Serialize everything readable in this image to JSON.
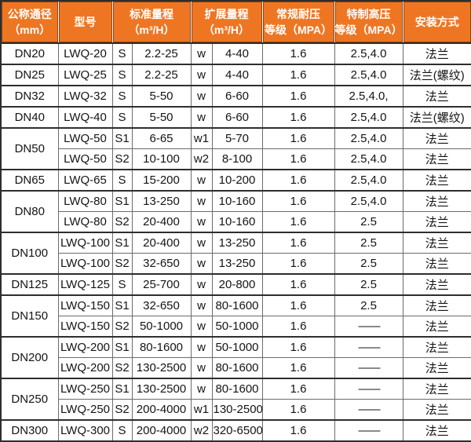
{
  "table": {
    "header": {
      "col_diameter": {
        "line1": "公称通径",
        "line2": "（mm）"
      },
      "col_model": {
        "line1": "型号"
      },
      "col_standard": {
        "line1": "标准量程",
        "line2": "（m³/H）"
      },
      "col_extended": {
        "line1": "扩展量程",
        "line2": "（m³/H）"
      },
      "col_normal_pressure": {
        "line1": "常规耐压",
        "line2": "等级（MPA）"
      },
      "col_high_pressure": {
        "line1": "特制高压",
        "line2": "等级（MPA）"
      },
      "col_install": {
        "line1": "安装方式"
      }
    },
    "rows": [
      {
        "dn": "DN20",
        "dn_span": 1,
        "model": "LWQ-20",
        "s": "S",
        "std": "2.2-25",
        "w": "w",
        "ext": "4-40",
        "normal": "1.6",
        "high": "2.5,4.0",
        "install": "法兰"
      },
      {
        "dn": "DN25",
        "dn_span": 1,
        "model": "LWQ-25",
        "s": "S",
        "std": "2.2-25",
        "w": "w",
        "ext": "4-40",
        "normal": "1.6",
        "high": "2.5,4.0",
        "install": "法兰(螺纹)"
      },
      {
        "dn": "DN32",
        "dn_span": 1,
        "model": "LWQ-32",
        "s": "S",
        "std": "5-50",
        "w": "w",
        "ext": "6-60",
        "normal": "1.6",
        "high": "2.5,4.0,",
        "install": "法兰"
      },
      {
        "dn": "DN40",
        "dn_span": 1,
        "model": "LWQ-40",
        "s": "S",
        "std": "5-50",
        "w": "w",
        "ext": "6-60",
        "normal": "1.6",
        "high": "2.5,4.0",
        "install": "法兰(螺纹)"
      },
      {
        "dn": "DN50",
        "dn_span": 2,
        "model": "LWQ-50",
        "s": "S1",
        "std": "6-65",
        "w": "w1",
        "ext": "5-70",
        "normal": "1.6",
        "high": "2.5,4.0",
        "install": "法兰"
      },
      {
        "model": "LWQ-50",
        "s": "S2",
        "std": "10-100",
        "w": "w2",
        "ext": "8-100",
        "normal": "1.6",
        "high": "2.5,4.0",
        "install": "法兰"
      },
      {
        "dn": "DN65",
        "dn_span": 1,
        "model": "LWQ-65",
        "s": "S",
        "std": "15-200",
        "w": "w",
        "ext": "10-200",
        "normal": "1.6",
        "high": "2.5,4.0",
        "install": "法兰"
      },
      {
        "dn": "DN80",
        "dn_span": 2,
        "model": "LWQ-80",
        "s": "S1",
        "std": "13-250",
        "w": "w",
        "ext": "10-160",
        "normal": "1.6",
        "high": "2.5,4.0",
        "install": "法兰"
      },
      {
        "model": "LWQ-80",
        "s": "S2",
        "std": "20-400",
        "w": "w",
        "ext": "10-160",
        "normal": "1.6",
        "high": "2.5",
        "install": "法兰"
      },
      {
        "dn": "DN100",
        "dn_span": 2,
        "model": "LWQ-100",
        "s": "S1",
        "std": "20-400",
        "w": "w",
        "ext": "13-250",
        "normal": "1.6",
        "high": "2.5",
        "install": "法兰"
      },
      {
        "model": "LWQ-100",
        "s": "S2",
        "std": "32-650",
        "w": "w",
        "ext": "13-250",
        "normal": "1.6",
        "high": "2.5",
        "install": "法兰"
      },
      {
        "dn": "DN125",
        "dn_span": 1,
        "model": "LWQ-125",
        "s": "S",
        "std": "25-700",
        "w": "w",
        "ext": "20-800",
        "normal": "1.6",
        "high": "2.5",
        "install": "法兰"
      },
      {
        "dn": "DN150",
        "dn_span": 2,
        "model": "LWQ-150",
        "s": "S1",
        "std": "32-650",
        "w": "w",
        "ext": "80-1600",
        "normal": "1.6",
        "high": "2.5",
        "install": "法兰"
      },
      {
        "model": "LWQ-150",
        "s": "S2",
        "std": "50-1000",
        "w": "w",
        "ext": "50-1000",
        "normal": "1.6",
        "high": "——",
        "install": "法兰"
      },
      {
        "dn": "DN200",
        "dn_span": 2,
        "model": "LWQ-200",
        "s": "S1",
        "std": "80-1600",
        "w": "w",
        "ext": "50-1000",
        "normal": "1.6",
        "high": "——",
        "install": "法兰"
      },
      {
        "model": "LWQ-200",
        "s": "S2",
        "std": "130-2500",
        "w": "w",
        "ext": "80-1600",
        "normal": "1.6",
        "high": "——",
        "install": "法兰"
      },
      {
        "dn": "DN250",
        "dn_span": 2,
        "model": "LWQ-250",
        "s": "S1",
        "std": "130-2500",
        "w": "w",
        "ext": "80-1600",
        "normal": "1.6",
        "high": "——",
        "install": "法兰"
      },
      {
        "model": "LWQ-250",
        "s": "S2",
        "std": "200-4000",
        "w": "w1",
        "ext": "130-2500",
        "normal": "1.6",
        "high": "——",
        "install": "法兰"
      },
      {
        "dn": "DN300",
        "dn_span": 1,
        "model": "LWQ-300",
        "s": "S",
        "std": "200-4000",
        "w": "w2",
        "ext": "320-6500",
        "normal": "1.6",
        "high": "——",
        "install": "法兰"
      }
    ]
  },
  "colors": {
    "header_bg": "#ee7623",
    "header_text": "#ffffff",
    "header_cell_border": "#874512",
    "grid_line": "#6b6b6b",
    "grid_line_heavy": "#2e2e2e",
    "body_text": "#141414"
  }
}
